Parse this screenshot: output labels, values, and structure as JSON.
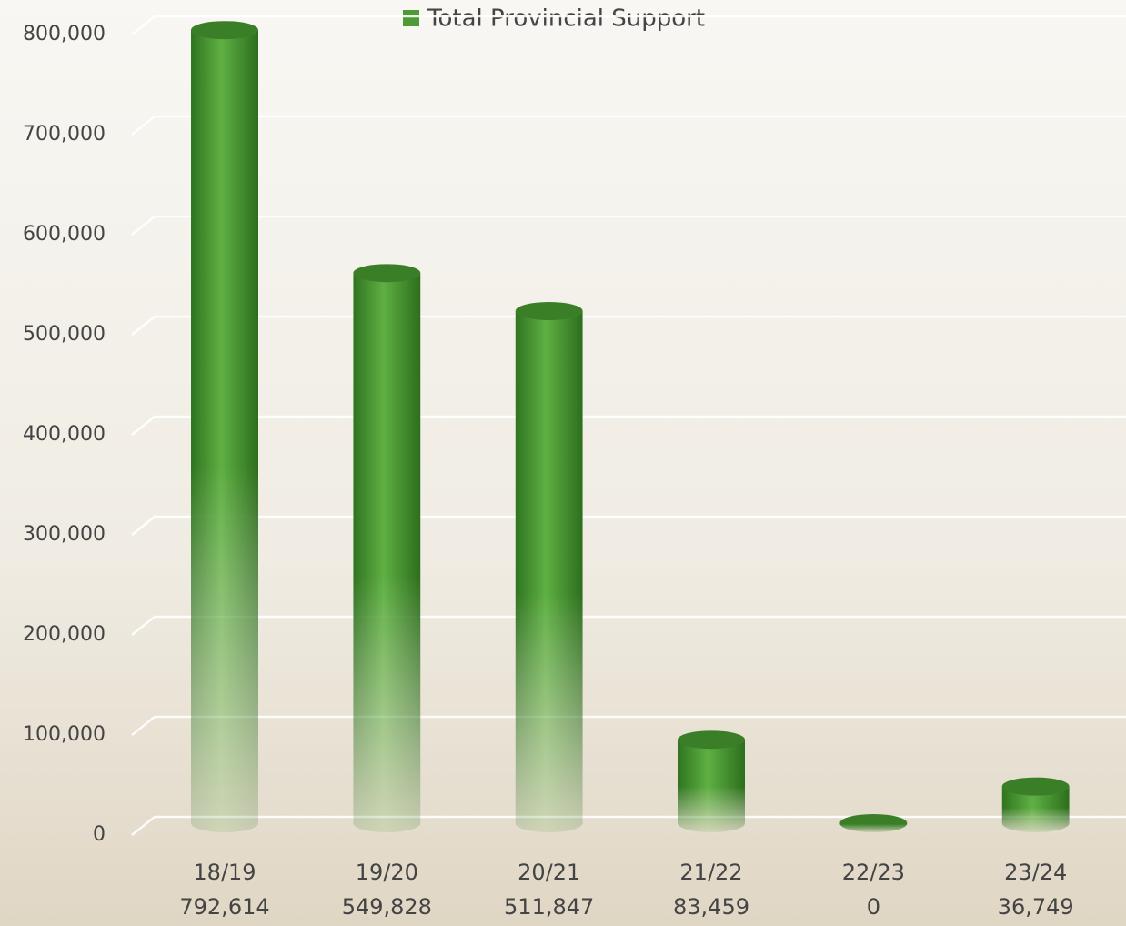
{
  "chart_data": {
    "type": "bar",
    "categories": [
      "18/19",
      "19/20",
      "20/21",
      "21/22",
      "22/23",
      "23/24"
    ],
    "series": [
      {
        "name": "Total Provincial Support",
        "color": "#4e9a34",
        "values": [
          792614,
          549828,
          511847,
          83459,
          0,
          36749
        ],
        "value_labels": [
          "792,614",
          "549,828",
          "511,847",
          "83,459",
          "0",
          "36,749"
        ]
      }
    ],
    "ylim": [
      0,
      800000
    ],
    "yticks": [
      0,
      {
        "value": 100000,
        "label": "100,000"
      },
      {
        "value": 200000,
        "label": "200,000"
      },
      {
        "value": 300000,
        "label": "300,000"
      },
      {
        "value": 400000,
        "label": "400,000"
      },
      {
        "value": 500000,
        "label": "500,000"
      },
      {
        "value": 600000,
        "label": "600,000"
      },
      {
        "value": 700000,
        "label": "700,000"
      },
      {
        "value": 800000,
        "label": "800,000"
      }
    ],
    "grid": true,
    "legend": "top"
  }
}
